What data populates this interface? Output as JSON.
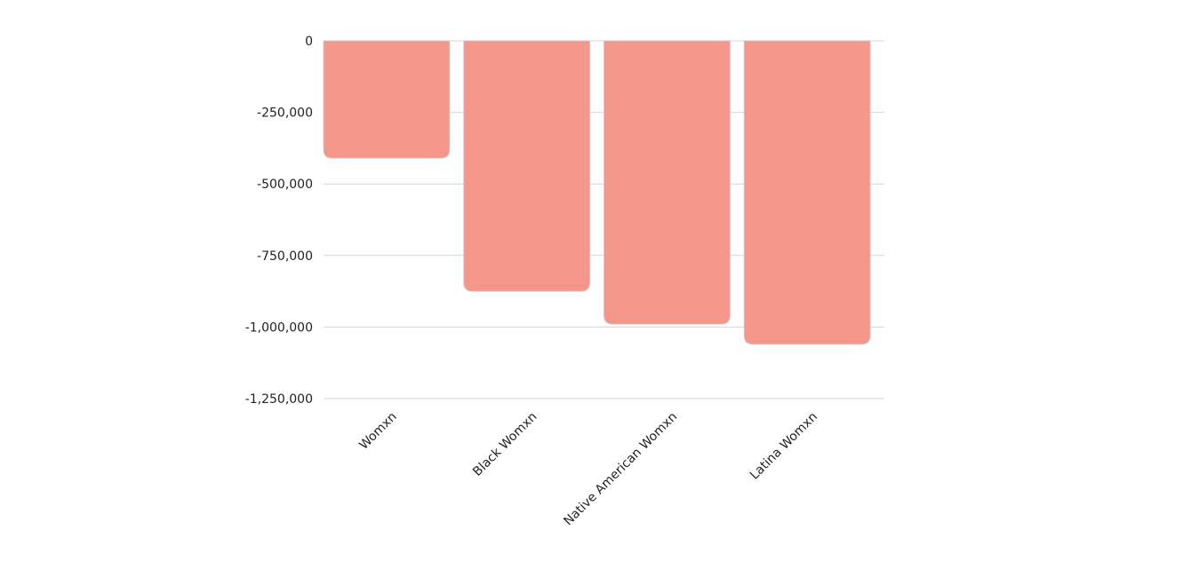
{
  "chart_data": {
    "type": "bar",
    "categories": [
      "Womxn",
      "Black Womxn",
      "Native American Womxn",
      "Latina Womxn"
    ],
    "values": [
      -410000,
      -875000,
      -990000,
      -1060000
    ],
    "yticks": [
      0,
      -250000,
      -500000,
      -750000,
      -1000000,
      -1250000
    ],
    "tick_labels": [
      "0",
      "-250,000",
      "-500,000",
      "-750,000",
      "-1,000,000",
      "-1,250,000"
    ],
    "ylim": [
      -1250000,
      0
    ],
    "grid": true,
    "title": "",
    "xlabel": "",
    "ylabel": "",
    "colors": {
      "bar": "#f4978a",
      "bar_edge": "#c9c9c9",
      "grid": "#d6d6d6"
    }
  }
}
